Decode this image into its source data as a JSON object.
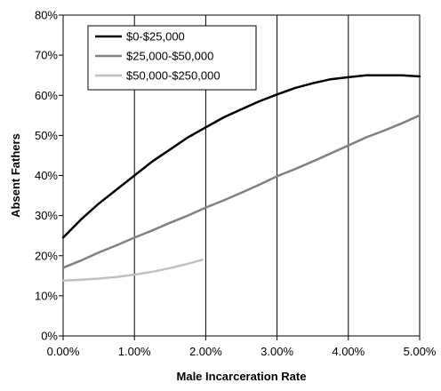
{
  "chart_data": {
    "type": "line",
    "title": "",
    "xlabel": "Male Incarceration Rate",
    "ylabel": "Absent Fathers",
    "xlim": [
      0,
      5
    ],
    "ylim": [
      0,
      80
    ],
    "x_ticks": [
      0,
      1,
      2,
      3,
      4,
      5
    ],
    "x_tick_labels": [
      "0.00%",
      "1.00%",
      "2.00%",
      "3.00%",
      "4.00%",
      "5.00%"
    ],
    "y_ticks": [
      0,
      10,
      20,
      30,
      40,
      50,
      60,
      70,
      80
    ],
    "y_tick_labels": [
      "0%",
      "10%",
      "20%",
      "30%",
      "40%",
      "50%",
      "60%",
      "70%",
      "80%"
    ],
    "grid": {
      "vertical": true,
      "horizontal": false
    },
    "legend_position": "top-left",
    "series": [
      {
        "name": "$0-$25,000",
        "color": "#000000",
        "x": [
          0,
          0.25,
          0.5,
          0.75,
          1.0,
          1.25,
          1.5,
          1.75,
          2.0,
          2.25,
          2.5,
          2.75,
          3.0,
          3.25,
          3.5,
          3.75,
          4.0,
          4.25,
          4.5,
          4.75,
          5.0
        ],
        "y": [
          24.5,
          29,
          33,
          36.5,
          40,
          43.5,
          46.5,
          49.5,
          52,
          54.5,
          56.5,
          58.5,
          60.2,
          61.8,
          63,
          64,
          64.5,
          65,
          65,
          65,
          64.7
        ]
      },
      {
        "name": "$25,000-$50,000",
        "color": "#808080",
        "x": [
          0,
          0.25,
          0.5,
          0.75,
          1.0,
          1.25,
          1.5,
          1.75,
          2.0,
          2.25,
          2.5,
          2.75,
          3.0,
          3.25,
          3.5,
          3.75,
          4.0,
          4.25,
          4.5,
          4.75,
          5.0
        ],
        "y": [
          17,
          18.8,
          20.8,
          22.6,
          24.5,
          26.3,
          28.2,
          30,
          32,
          33.8,
          35.7,
          37.7,
          39.8,
          41.6,
          43.5,
          45.5,
          47.5,
          49.5,
          51.2,
          53,
          55
        ]
      },
      {
        "name": "$50,000-$250,000",
        "color": "#c0c0c0",
        "x": [
          0,
          0.25,
          0.5,
          0.75,
          1.0,
          1.25,
          1.5,
          1.75,
          1.95
        ],
        "y": [
          13.8,
          14,
          14.3,
          14.7,
          15.3,
          16,
          16.9,
          18,
          19
        ]
      }
    ]
  }
}
